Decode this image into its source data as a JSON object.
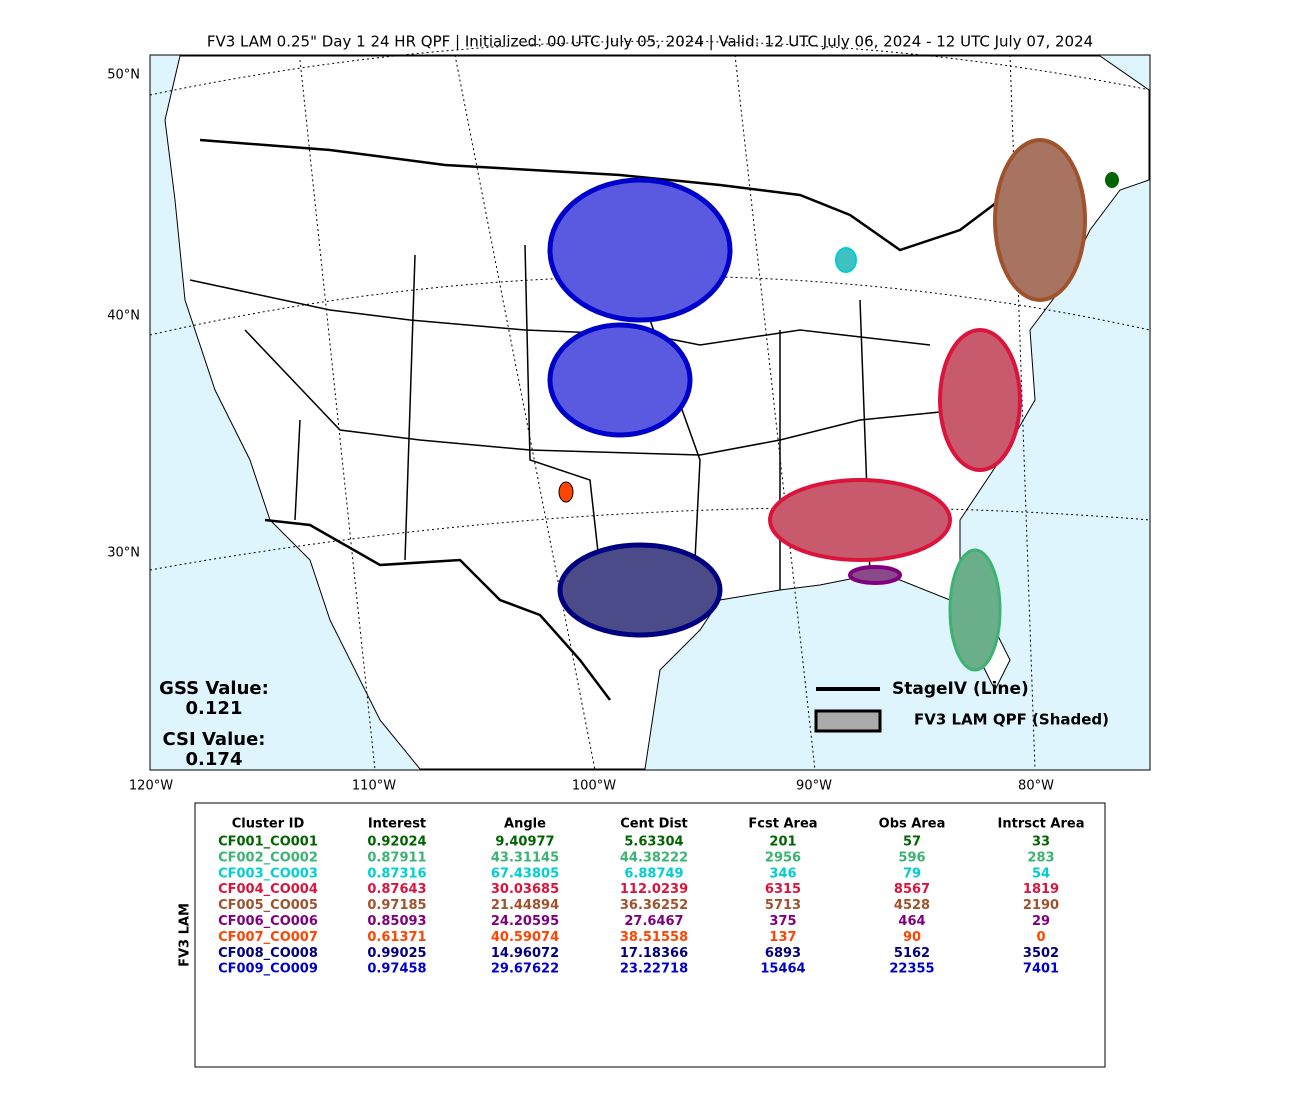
{
  "title": "FV3 LAM 0.25\" Day 1 24 HR QPF | Initialized: 00 UTC July 05, 2024 | Valid: 12 UTC July 06, 2024 - 12 UTC July 07, 2024",
  "lat_labels": [
    "50°N",
    "40°N",
    "30°N"
  ],
  "lon_labels": [
    "120°W",
    "110°W",
    "100°W",
    "90°W",
    "80°W"
  ],
  "scores": {
    "gss_label": "GSS Value:",
    "gss_value": "0.121",
    "csi_label": "CSI Value:",
    "csi_value": "0.174"
  },
  "legend": {
    "line": "StageIV (Line)",
    "shaded": "FV3 LAM QPF (Shaded)"
  },
  "table": {
    "side_label": "FV3 LAM",
    "columns": [
      "Cluster ID",
      "Interest",
      "Angle",
      "Cent Dist",
      "Fcst Area",
      "Obs Area",
      "Intrsct Area"
    ],
    "colors": [
      "#006400",
      "#3cb371",
      "#00ced1",
      "#dc143c",
      "#a0522d",
      "#800080",
      "#ff4500",
      "#000080",
      "#0000cd"
    ],
    "rows": [
      [
        "CF001_CO001",
        "0.92024",
        "9.40977",
        "5.63304",
        "201",
        "57",
        "33"
      ],
      [
        "CF002_CO002",
        "0.87911",
        "43.31145",
        "44.38222",
        "2956",
        "596",
        "283"
      ],
      [
        "CF003_CO003",
        "0.87316",
        "67.43805",
        "6.88749",
        "346",
        "79",
        "54"
      ],
      [
        "CF004_CO004",
        "0.87643",
        "30.03685",
        "112.0239",
        "6315",
        "8567",
        "1819"
      ],
      [
        "CF005_CO005",
        "0.97185",
        "21.44894",
        "36.36252",
        "5713",
        "4528",
        "2190"
      ],
      [
        "CF006_CO006",
        "0.85093",
        "24.20595",
        "27.6467",
        "375",
        "464",
        "29"
      ],
      [
        "CF007_CO007",
        "0.61371",
        "40.59074",
        "38.51558",
        "137",
        "90",
        "0"
      ],
      [
        "CF008_CO008",
        "0.99025",
        "14.96072",
        "17.18366",
        "6893",
        "5162",
        "3502"
      ],
      [
        "CF009_CO009",
        "0.97458",
        "29.67622",
        "23.22718",
        "15464",
        "22355",
        "7401"
      ]
    ]
  }
}
